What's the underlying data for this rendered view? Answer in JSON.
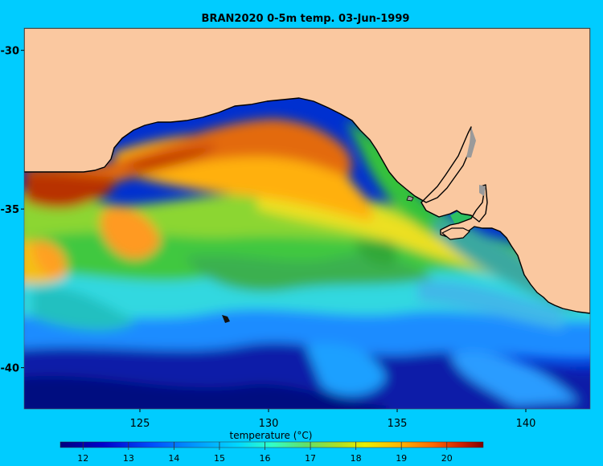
{
  "title": "BRAN2020 0-5m temp. 03-Jun-1999",
  "map": {
    "x_axis": {
      "label": "",
      "ticks": [
        "125",
        "130",
        "135",
        "140"
      ],
      "range": [
        120.5,
        142.5
      ]
    },
    "y_axis": {
      "label": "",
      "ticks": [
        "-30",
        "-35",
        "-40"
      ],
      "range": [
        -41.3,
        -29.3
      ]
    },
    "land_color": "#fac8a0",
    "coast_color": "#000000"
  },
  "colorbar": {
    "label": "temperature (°C)",
    "ticks": [
      "12",
      "13",
      "14",
      "15",
      "16",
      "17",
      "18",
      "19",
      "20"
    ],
    "range": [
      11.5,
      20.8
    ],
    "colors": [
      "#00007f",
      "#0000d8",
      "#0040ff",
      "#0090ff",
      "#00d4ff",
      "#29ffce",
      "#57e07a",
      "#9acd32",
      "#c8ff00",
      "#ffe600",
      "#ffae00",
      "#ff6f00",
      "#d23000",
      "#7f0000"
    ]
  },
  "colors": {
    "background": "#00ccff"
  }
}
